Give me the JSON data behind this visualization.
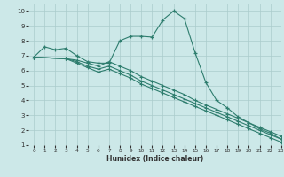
{
  "background_color": "#cce8e8",
  "grid_color": "#aacccc",
  "line_color": "#2e7d6e",
  "xlabel": "Humidex (Indice chaleur)",
  "xlim": [
    -0.5,
    23
  ],
  "ylim": [
    1,
    10.5
  ],
  "xticks": [
    0,
    1,
    2,
    3,
    4,
    5,
    6,
    7,
    8,
    9,
    10,
    11,
    12,
    13,
    14,
    15,
    16,
    17,
    18,
    19,
    20,
    21,
    22,
    23
  ],
  "yticks": [
    1,
    2,
    3,
    4,
    5,
    6,
    7,
    8,
    9,
    10
  ],
  "series1_x": [
    0,
    1,
    2,
    3,
    4,
    5,
    6,
    7,
    8,
    9,
    10,
    11,
    12,
    13,
    14,
    15,
    16,
    17,
    18,
    19,
    20,
    21,
    22,
    23
  ],
  "series1_y": [
    6.9,
    7.6,
    7.4,
    7.5,
    7.0,
    6.6,
    6.5,
    6.5,
    8.0,
    8.3,
    8.3,
    8.25,
    9.4,
    10.0,
    9.5,
    7.2,
    5.2,
    4.0,
    3.5,
    2.9,
    2.5,
    2.1,
    1.8,
    1.4
  ],
  "series2_x": [
    0,
    3,
    4,
    5,
    6,
    7,
    8,
    9,
    10,
    11,
    12,
    13,
    14,
    15,
    16,
    17,
    18,
    19,
    20,
    21,
    22,
    23
  ],
  "series2_y": [
    6.9,
    6.8,
    6.7,
    6.5,
    6.3,
    6.6,
    6.3,
    6.0,
    5.6,
    5.3,
    5.0,
    4.7,
    4.4,
    4.0,
    3.7,
    3.4,
    3.1,
    2.8,
    2.5,
    2.2,
    1.9,
    1.6
  ],
  "series3_x": [
    0,
    3,
    4,
    5,
    6,
    7,
    8,
    9,
    10,
    11,
    12,
    13,
    14,
    15,
    16,
    17,
    18,
    19,
    20,
    21,
    22,
    23
  ],
  "series3_y": [
    6.9,
    6.8,
    6.6,
    6.3,
    6.1,
    6.3,
    6.0,
    5.7,
    5.3,
    5.0,
    4.7,
    4.4,
    4.1,
    3.8,
    3.5,
    3.2,
    2.9,
    2.6,
    2.3,
    2.0,
    1.7,
    1.4
  ],
  "series4_x": [
    0,
    3,
    4,
    5,
    6,
    7,
    8,
    9,
    10,
    11,
    12,
    13,
    14,
    15,
    16,
    17,
    18,
    19,
    20,
    21,
    22,
    23
  ],
  "series4_y": [
    6.9,
    6.8,
    6.5,
    6.2,
    5.9,
    6.1,
    5.8,
    5.5,
    5.1,
    4.8,
    4.5,
    4.2,
    3.9,
    3.6,
    3.3,
    3.0,
    2.7,
    2.4,
    2.1,
    1.8,
    1.5,
    1.2
  ]
}
